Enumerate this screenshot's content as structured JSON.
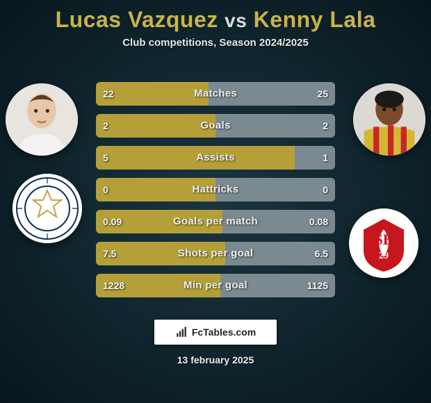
{
  "player1": {
    "name": "Lucas Vazquez"
  },
  "player2": {
    "name": "Kenny Lala"
  },
  "vs_label": "vs",
  "subtitle": "Club competitions, Season 2024/2025",
  "colors": {
    "accent": "#c9b34a",
    "left_bar": "#b59f38",
    "right_bar": "#7a8a90",
    "bar_bg": "#1d3a44",
    "bg_center": "#1a3540",
    "bg_edge": "#08161c",
    "text": "#f0f0f0"
  },
  "stats": [
    {
      "label": "Matches",
      "left_val": "22",
      "right_val": "25",
      "left_pct": 47,
      "right_pct": 53
    },
    {
      "label": "Goals",
      "left_val": "2",
      "right_val": "2",
      "left_pct": 50,
      "right_pct": 50
    },
    {
      "label": "Assists",
      "left_val": "5",
      "right_val": "1",
      "left_pct": 83,
      "right_pct": 17
    },
    {
      "label": "Hattricks",
      "left_val": "0",
      "right_val": "0",
      "left_pct": 50,
      "right_pct": 50
    },
    {
      "label": "Goals per match",
      "left_val": "0.09",
      "right_val": "0.08",
      "left_pct": 53,
      "right_pct": 47
    },
    {
      "label": "Shots per goal",
      "left_val": "7.5",
      "right_val": "6.5",
      "left_pct": 54,
      "right_pct": 46
    },
    {
      "label": "Min per goal",
      "left_val": "1228",
      "right_val": "1125",
      "left_pct": 52,
      "right_pct": 48
    }
  ],
  "brand": "FcTables.com",
  "date": "13 february 2025",
  "club_badge_right_text": "SB",
  "club_badge_right_sub": "29"
}
